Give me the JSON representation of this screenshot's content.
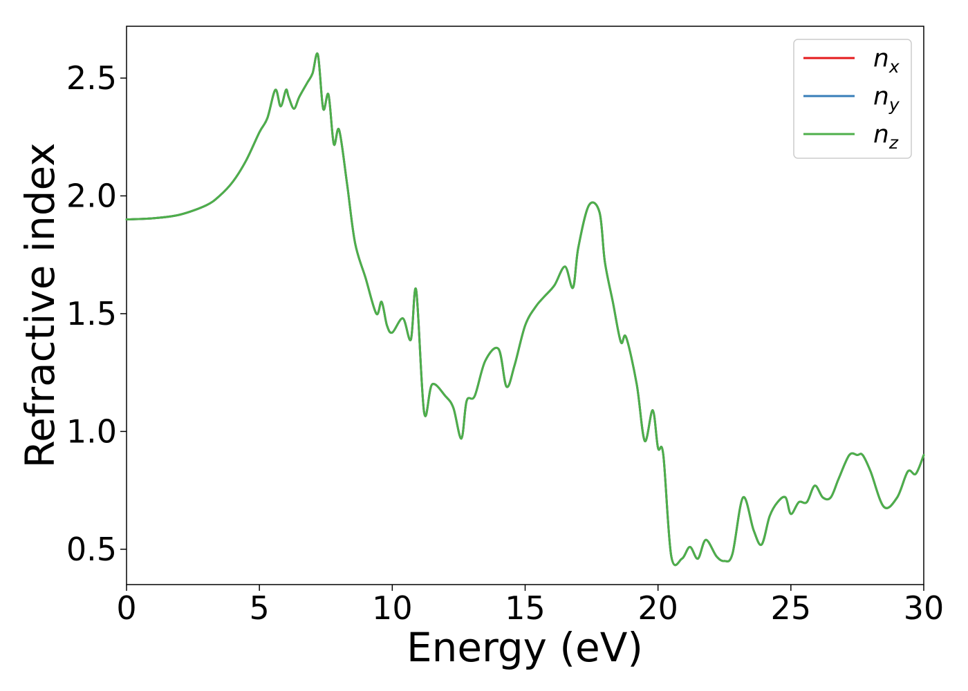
{
  "chart_data": {
    "type": "line",
    "xlabel": "Energy (eV)",
    "ylabel": "Refractive index",
    "xlim": [
      0,
      30
    ],
    "ylim": [
      0.35,
      2.72
    ],
    "xticks": [
      0,
      5,
      10,
      15,
      20,
      25,
      30
    ],
    "xtick_labels": [
      "0",
      "5",
      "10",
      "15",
      "20",
      "25",
      "30"
    ],
    "yticks": [
      0.5,
      1.0,
      1.5,
      2.0,
      2.5
    ],
    "ytick_labels": [
      "0.5",
      "1.0",
      "1.5",
      "2.0",
      "2.5"
    ],
    "grid": false,
    "legend_position": "top-right",
    "x": [
      0,
      1,
      2,
      3,
      3.5,
      4,
      4.5,
      5,
      5.3,
      5.6,
      5.8,
      6.0,
      6.1,
      6.3,
      6.5,
      6.8,
      7.0,
      7.2,
      7.4,
      7.6,
      7.8,
      8.0,
      8.3,
      8.6,
      9.0,
      9.4,
      9.6,
      9.8,
      10.0,
      10.4,
      10.7,
      10.9,
      11.2,
      11.5,
      12.0,
      12.3,
      12.6,
      12.8,
      13.1,
      13.5,
      14.0,
      14.3,
      14.6,
      15.0,
      15.4,
      15.7,
      16.1,
      16.5,
      16.8,
      17.0,
      17.4,
      17.8,
      18.0,
      18.3,
      18.6,
      18.8,
      19.2,
      19.5,
      19.8,
      20.0,
      20.2,
      20.5,
      20.9,
      21.2,
      21.5,
      21.8,
      22.2,
      22.5,
      22.8,
      23.2,
      23.6,
      23.9,
      24.2,
      24.5,
      24.8,
      25.0,
      25.3,
      25.6,
      25.9,
      26.2,
      26.5,
      26.8,
      27.2,
      27.5,
      27.7,
      28.0,
      28.5,
      29.0,
      29.4,
      29.7,
      30.0
    ],
    "series": [
      {
        "name": "n_x",
        "color": "#e41a1c",
        "values": [
          1.9,
          1.905,
          1.92,
          1.96,
          2.0,
          2.06,
          2.15,
          2.27,
          2.33,
          2.45,
          2.38,
          2.45,
          2.42,
          2.37,
          2.42,
          2.48,
          2.52,
          2.6,
          2.37,
          2.43,
          2.22,
          2.28,
          2.05,
          1.8,
          1.65,
          1.5,
          1.55,
          1.45,
          1.42,
          1.48,
          1.39,
          1.6,
          1.08,
          1.2,
          1.15,
          1.1,
          0.97,
          1.13,
          1.15,
          1.3,
          1.35,
          1.19,
          1.28,
          1.45,
          1.53,
          1.57,
          1.62,
          1.7,
          1.61,
          1.78,
          1.96,
          1.93,
          1.72,
          1.55,
          1.38,
          1.4,
          1.2,
          0.96,
          1.09,
          0.93,
          0.9,
          0.47,
          0.46,
          0.51,
          0.46,
          0.54,
          0.47,
          0.45,
          0.48,
          0.72,
          0.58,
          0.52,
          0.64,
          0.7,
          0.72,
          0.65,
          0.7,
          0.7,
          0.77,
          0.72,
          0.72,
          0.8,
          0.9,
          0.9,
          0.9,
          0.83,
          0.68,
          0.72,
          0.83,
          0.82,
          0.9
        ]
      },
      {
        "name": "n_y",
        "color": "#377eb8",
        "values": [
          1.9,
          1.905,
          1.92,
          1.96,
          2.0,
          2.06,
          2.15,
          2.27,
          2.33,
          2.45,
          2.38,
          2.45,
          2.42,
          2.37,
          2.42,
          2.48,
          2.52,
          2.6,
          2.37,
          2.43,
          2.22,
          2.28,
          2.05,
          1.8,
          1.65,
          1.5,
          1.55,
          1.45,
          1.42,
          1.48,
          1.39,
          1.6,
          1.08,
          1.2,
          1.15,
          1.1,
          0.97,
          1.13,
          1.15,
          1.3,
          1.35,
          1.19,
          1.28,
          1.45,
          1.53,
          1.57,
          1.62,
          1.7,
          1.61,
          1.78,
          1.96,
          1.93,
          1.72,
          1.55,
          1.38,
          1.4,
          1.2,
          0.96,
          1.09,
          0.93,
          0.9,
          0.47,
          0.46,
          0.51,
          0.46,
          0.54,
          0.47,
          0.45,
          0.48,
          0.72,
          0.58,
          0.52,
          0.64,
          0.7,
          0.72,
          0.65,
          0.7,
          0.7,
          0.77,
          0.72,
          0.72,
          0.8,
          0.9,
          0.9,
          0.9,
          0.83,
          0.68,
          0.72,
          0.83,
          0.82,
          0.9
        ]
      },
      {
        "name": "n_z",
        "color": "#4daf4a",
        "values": [
          1.9,
          1.905,
          1.92,
          1.96,
          2.0,
          2.06,
          2.15,
          2.27,
          2.33,
          2.45,
          2.38,
          2.45,
          2.42,
          2.37,
          2.42,
          2.48,
          2.52,
          2.6,
          2.37,
          2.43,
          2.22,
          2.28,
          2.05,
          1.8,
          1.65,
          1.5,
          1.55,
          1.45,
          1.42,
          1.48,
          1.39,
          1.6,
          1.08,
          1.2,
          1.15,
          1.1,
          0.97,
          1.13,
          1.15,
          1.3,
          1.35,
          1.19,
          1.28,
          1.45,
          1.53,
          1.57,
          1.62,
          1.7,
          1.61,
          1.78,
          1.96,
          1.93,
          1.72,
          1.55,
          1.38,
          1.4,
          1.2,
          0.96,
          1.09,
          0.93,
          0.9,
          0.47,
          0.46,
          0.51,
          0.46,
          0.54,
          0.47,
          0.45,
          0.48,
          0.72,
          0.58,
          0.52,
          0.64,
          0.7,
          0.72,
          0.65,
          0.7,
          0.7,
          0.77,
          0.72,
          0.72,
          0.8,
          0.9,
          0.9,
          0.9,
          0.83,
          0.68,
          0.72,
          0.83,
          0.82,
          0.9
        ]
      }
    ],
    "legend": [
      {
        "base": "n",
        "sub": "x",
        "color": "#e41a1c"
      },
      {
        "base": "n",
        "sub": "y",
        "color": "#377eb8"
      },
      {
        "base": "n",
        "sub": "z",
        "color": "#4daf4a"
      }
    ]
  }
}
